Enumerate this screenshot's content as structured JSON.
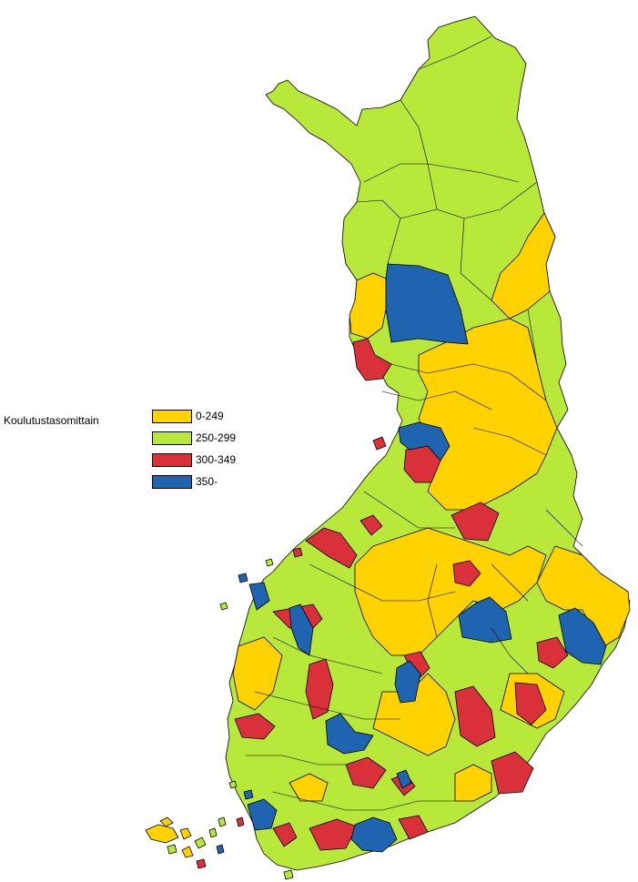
{
  "legend": {
    "title": "Koulutustasomittain",
    "items": [
      {
        "label": "0-249",
        "color": "#FFD200"
      },
      {
        "label": "250-299",
        "color": "#B8E83A"
      },
      {
        "label": "300-349",
        "color": "#D9303A"
      },
      {
        "label": "350-",
        "color": "#1F64B0"
      }
    ]
  },
  "map": {
    "subject": "Finland municipalities",
    "background": "#FFFFFF",
    "border_color": "#000000"
  }
}
